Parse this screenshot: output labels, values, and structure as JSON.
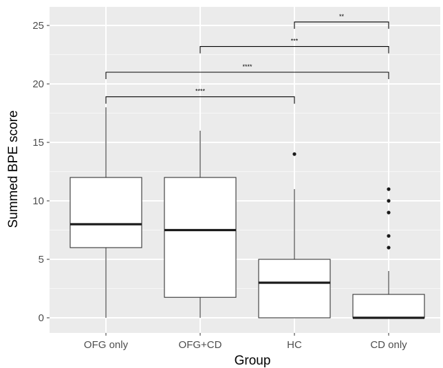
{
  "chart_data": {
    "type": "box",
    "xlabel": "Group",
    "ylabel": "Summed BPE score",
    "ylim": [
      -1.3,
      26.5
    ],
    "yticks": [
      0,
      5,
      10,
      15,
      20,
      25
    ],
    "grid": true,
    "background": "#ebebeb",
    "categories": [
      "OFG only",
      "OFG+CD",
      "HC",
      "CD only"
    ],
    "boxes": [
      {
        "group": "OFG only",
        "whisker_low": 0,
        "q1": 6,
        "median": 8,
        "q3": 12,
        "whisker_high": 18,
        "outliers": []
      },
      {
        "group": "OFG+CD",
        "whisker_low": 0,
        "q1": 1.75,
        "median": 7.5,
        "q3": 12,
        "whisker_high": 16,
        "outliers": []
      },
      {
        "group": "HC",
        "whisker_low": 0,
        "q1": 0,
        "median": 3,
        "q3": 5,
        "whisker_high": 11,
        "outliers": [
          14
        ]
      },
      {
        "group": "CD only",
        "whisker_low": 0,
        "q1": 0,
        "median": 0,
        "q3": 2,
        "whisker_high": 4,
        "outliers": [
          6,
          7,
          9,
          10,
          11
        ]
      }
    ],
    "comparisons": [
      {
        "from": "HC",
        "to": "CD only",
        "y": 25.3,
        "label": "**"
      },
      {
        "from": "OFG+CD",
        "to": "CD only",
        "y": 23.2,
        "label": "***"
      },
      {
        "from": "OFG only",
        "to": "CD only",
        "y": 21.0,
        "label": "****"
      },
      {
        "from": "OFG only",
        "to": "HC",
        "y": 18.9,
        "label": "****"
      }
    ]
  }
}
